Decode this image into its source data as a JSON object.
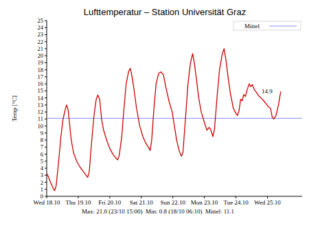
{
  "chart_data": {
    "type": "line",
    "title": "Lufttemperatur – Station Universität Graz",
    "y_label": "Temp [°C]",
    "footer": "Max: 21.0 (23/10 15:00)  Min: 0.8 (18/10 06:10)  Mittel: 11.1",
    "annotations": [
      {
        "text": "14.9"
      }
    ],
    "legend": "top-right",
    "grid": false,
    "mean": {
      "name": "Mittel",
      "value": 11.1,
      "color": "#8a8aff"
    },
    "x": [
      0,
      0.05,
      0.12,
      0.2,
      0.25,
      0.3,
      0.38,
      0.45,
      0.52,
      0.58,
      0.63,
      0.68,
      0.72,
      0.78,
      0.85,
      0.95,
      1.05,
      1.15,
      1.25,
      1.3,
      1.35,
      1.42,
      1.5,
      1.57,
      1.62,
      1.68,
      1.74,
      1.8,
      1.9,
      2.0,
      2.1,
      2.2,
      2.25,
      2.3,
      2.38,
      2.45,
      2.52,
      2.6,
      2.65,
      2.7,
      2.76,
      2.85,
      2.95,
      3.05,
      3.15,
      3.25,
      3.28,
      3.33,
      3.4,
      3.47,
      3.55,
      3.62,
      3.7,
      3.78,
      3.88,
      3.98,
      4.05,
      4.12,
      4.2,
      4.27,
      4.32,
      4.4,
      4.48,
      4.56,
      4.63,
      4.68,
      4.74,
      4.82,
      4.9,
      5.0,
      5.08,
      5.15,
      5.2,
      5.27,
      5.32,
      5.4,
      5.48,
      5.57,
      5.625,
      5.68,
      5.75,
      5.83,
      5.92,
      6.0,
      6.05,
      6.1,
      6.15,
      6.2,
      6.25,
      6.3,
      6.36,
      6.42,
      6.47,
      6.52,
      6.58,
      6.65,
      6.72,
      6.8,
      6.88,
      6.95,
      7.02,
      7.1,
      7.15,
      7.2,
      7.27,
      7.35,
      7.42
    ],
    "series": [
      {
        "color": "#cc0000",
        "line_style": "solid",
        "values": [
          3.3,
          2.8,
          2.0,
          1.2,
          0.8,
          1.5,
          5.0,
          8.5,
          11.0,
          12.2,
          13.0,
          12.3,
          10.5,
          8.0,
          6.2,
          5.0,
          4.2,
          3.6,
          3.0,
          2.7,
          3.5,
          7.5,
          11.5,
          13.8,
          14.4,
          13.8,
          11.0,
          9.5,
          8.0,
          6.8,
          6.0,
          5.4,
          5.2,
          5.8,
          8.5,
          12.5,
          16.0,
          17.8,
          18.2,
          17.2,
          15.5,
          12.5,
          10.0,
          8.5,
          7.5,
          6.8,
          6.5,
          8.0,
          12.5,
          16.0,
          17.5,
          17.7,
          17.3,
          15.5,
          13.5,
          12.0,
          10.0,
          8.0,
          6.5,
          5.7,
          6.2,
          11.0,
          16.0,
          19.0,
          20.3,
          19.0,
          17.0,
          14.0,
          12.0,
          10.5,
          9.4,
          9.8,
          9.5,
          8.5,
          9.5,
          14.0,
          18.0,
          20.3,
          21.0,
          19.5,
          17.0,
          14.5,
          12.5,
          11.8,
          11.5,
          12.2,
          13.8,
          13.6,
          14.5,
          14.2,
          15.2,
          16.0,
          15.6,
          15.9,
          15.2,
          14.8,
          14.3,
          14.0,
          13.6,
          13.2,
          12.8,
          12.5,
          11.3,
          11.0,
          11.5,
          13.0,
          14.9
        ]
      }
    ],
    "xlim": [
      0,
      8.1
    ],
    "xticks": [
      {
        "value": 0,
        "label": "Wed 18.10"
      },
      {
        "value": 1,
        "label": "Thu 19.10"
      },
      {
        "value": 2,
        "label": "Fri 20.10"
      },
      {
        "value": 3,
        "label": "Sat 21.10"
      },
      {
        "value": 4,
        "label": "Sun 22.10"
      },
      {
        "value": 5,
        "label": "Mon 23.10"
      },
      {
        "value": 6,
        "label": "Tue 24.10"
      },
      {
        "value": 7,
        "label": "Wed 25.10"
      }
    ],
    "ylim": [
      0,
      25
    ],
    "yticks": [
      0,
      1,
      2,
      3,
      4,
      5,
      6,
      7,
      8,
      9,
      10,
      11,
      12,
      13,
      14,
      15,
      16,
      17,
      18,
      19,
      20,
      21,
      22,
      23,
      24,
      25
    ]
  }
}
